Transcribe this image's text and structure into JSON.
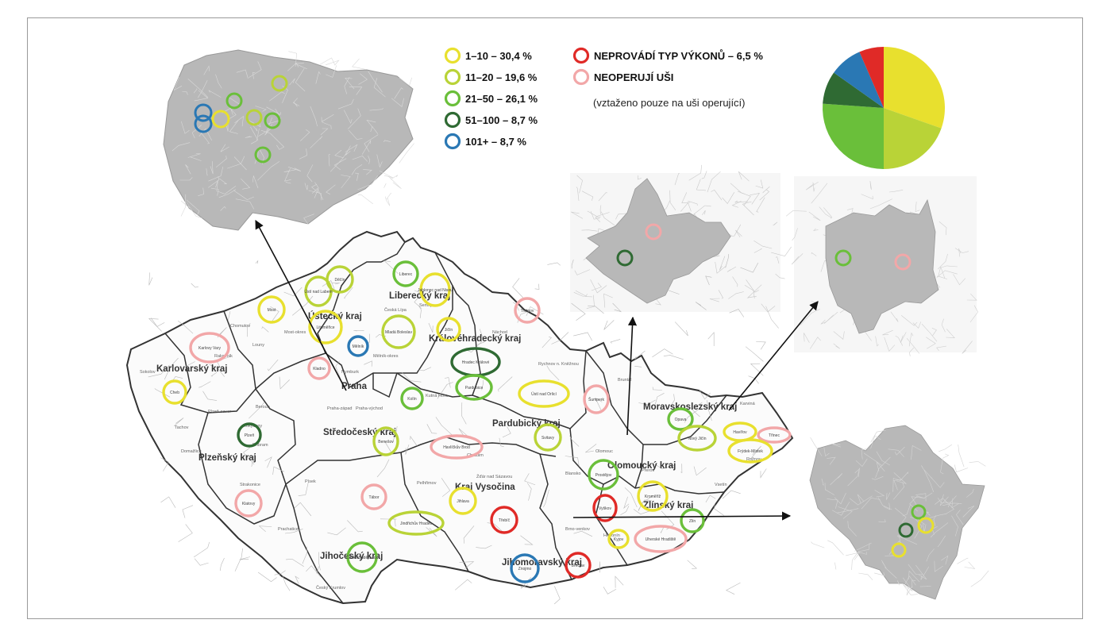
{
  "colors": {
    "c1_10": "#e8e02e",
    "c11_20": "#b9d337",
    "c21_50": "#6abf3a",
    "c51_100": "#2f6a33",
    "c101": "#2a78b4",
    "red": "#e02a27",
    "pink": "#f2a7a8",
    "map_fill": "#b8b8b8",
    "map_light": "#f4f4f4",
    "line": "#555555"
  },
  "legend": {
    "items": [
      {
        "text": "1–10 – 30,4 %",
        "color_key": "c1_10"
      },
      {
        "text": "11–20 – 19,6 %",
        "color_key": "c11_20"
      },
      {
        "text": "21–50 – 26,1 %",
        "color_key": "c21_50"
      },
      {
        "text": "51–100 – 8,7 %",
        "color_key": "c51_100"
      },
      {
        "text": "101+ – 8,7 %",
        "color_key": "c101"
      },
      {
        "text": "NEPROVÁDÍ TYP VÝKONŮ – 6,5 %",
        "color_key": "red"
      },
      {
        "text": "NEOPERUJÍ UŠI",
        "color_key": "pink"
      }
    ],
    "note": "(vztaženo pouze na uši operující)"
  },
  "pie": {
    "slices": [
      {
        "value": 30.4,
        "color_key": "c1_10"
      },
      {
        "value": 19.6,
        "color_key": "c11_20"
      },
      {
        "value": 26.1,
        "color_key": "c21_50"
      },
      {
        "value": 8.7,
        "color_key": "c51_100"
      },
      {
        "value": 8.7,
        "color_key": "c101"
      },
      {
        "value": 6.5,
        "color_key": "red"
      }
    ]
  },
  "regions": [
    {
      "id": "liberecky",
      "label": "Liberecký kraj"
    },
    {
      "id": "ustecky",
      "label": "Ústecký kraj"
    },
    {
      "id": "karlovarsky",
      "label": "Karlovarský kraj"
    },
    {
      "id": "kralovehradecky",
      "label": "Královéhradecký kraj"
    },
    {
      "id": "praha",
      "label": "Praha"
    },
    {
      "id": "stredocesky",
      "label": "Středočeský kraj"
    },
    {
      "id": "pardubicky",
      "label": "Pardubický kraj"
    },
    {
      "id": "plzensky",
      "label": "Plzeňský kraj"
    },
    {
      "id": "moravskoslezsky",
      "label": "Moravskoslezský kraj"
    },
    {
      "id": "olomoucky",
      "label": "Olomoucký kraj"
    },
    {
      "id": "vysocina",
      "label": "Kraj Vysočina"
    },
    {
      "id": "zlinsky",
      "label": "Zlínský kraj"
    },
    {
      "id": "jihocesky",
      "label": "Jihočeský kraj"
    },
    {
      "id": "jihomoravsky",
      "label": "Jihomoravský kraj"
    }
  ],
  "markers": [
    {
      "label": "Děčín",
      "color_key": "c11_20"
    },
    {
      "label": "Ústí nad Labem",
      "color_key": "c11_20"
    },
    {
      "label": "Most",
      "color_key": "c1_10"
    },
    {
      "label": "Liberec",
      "color_key": "c21_50"
    },
    {
      "label": "Jablonec nad Nisou",
      "color_key": "c1_10"
    },
    {
      "label": "Trutnov",
      "color_key": "pink"
    },
    {
      "label": "Litoměřice",
      "color_key": "c1_10"
    },
    {
      "label": "Mladá Boleslav",
      "color_key": "c11_20"
    },
    {
      "label": "Jičín",
      "color_key": "c1_10"
    },
    {
      "label": "Karlovy Vary",
      "color_key": "pink"
    },
    {
      "label": "Mělník",
      "color_key": "c101"
    },
    {
      "label": "Kladno",
      "color_key": "pink"
    },
    {
      "label": "Hradec Králové",
      "color_key": "c51_100"
    },
    {
      "label": "Pardubice",
      "color_key": "c21_50"
    },
    {
      "label": "Cheb",
      "color_key": "c1_10"
    },
    {
      "label": "Kolín",
      "color_key": "c21_50"
    },
    {
      "label": "Ústí nad Orlicí",
      "color_key": "c1_10"
    },
    {
      "label": "Šumperk",
      "color_key": "pink"
    },
    {
      "label": "Plzeň",
      "color_key": "c51_100"
    },
    {
      "label": "Benešov",
      "color_key": "c11_20"
    },
    {
      "label": "Havlíčkův Brod",
      "color_key": "pink"
    },
    {
      "label": "Svitavy",
      "color_key": "c11_20"
    },
    {
      "label": "Opava",
      "color_key": "c21_50"
    },
    {
      "label": "Nový Jičín",
      "color_key": "c11_20"
    },
    {
      "label": "Havířov",
      "color_key": "c1_10"
    },
    {
      "label": "Třinec",
      "color_key": "pink"
    },
    {
      "label": "Frýdek-Místek",
      "color_key": "c1_10"
    },
    {
      "label": "Prostějov",
      "color_key": "c21_50"
    },
    {
      "label": "Klatovy",
      "color_key": "pink"
    },
    {
      "label": "Tábor",
      "color_key": "pink"
    },
    {
      "label": "Jihlava",
      "color_key": "c1_10"
    },
    {
      "label": "Kroměříž",
      "color_key": "c1_10"
    },
    {
      "label": "Třebíč",
      "color_key": "red"
    },
    {
      "label": "Vyškov",
      "color_key": "red"
    },
    {
      "label": "Zlín",
      "color_key": "c21_50"
    },
    {
      "label": "Jindřichův Hradec",
      "color_key": "c11_20"
    },
    {
      "label": "Kyjov",
      "color_key": "c1_10"
    },
    {
      "label": "Uherské Hradiště",
      "color_key": "pink"
    },
    {
      "label": "České Budějovice",
      "color_key": "c21_50"
    },
    {
      "label": "Znojmo",
      "color_key": "c101"
    },
    {
      "label": "Břeclav",
      "color_key": "red"
    }
  ],
  "district_labels": [
    "Chomutov",
    "Louny",
    "Česká Lípa",
    "Semily",
    "Sokolov",
    "Rakovník",
    "Beroun",
    "Tachov",
    "Plzeň-sever",
    "Rokycany",
    "Domažlice",
    "Příbram",
    "Písek",
    "Strakonice",
    "Prachatice",
    "Český Krumlov",
    "Pelhřimov",
    "Žďár nad Sázavou",
    "Chrudim",
    "Náchod",
    "Rychnov n. Kněžnou",
    "Bruntál",
    "Olomouc",
    "Přerov",
    "Vsetín",
    "Blansko",
    "Brno-venkov",
    "Hodonín",
    "Nymburk",
    "Kutná Hora",
    "Praha-západ",
    "Praha-východ",
    "Karviná",
    "Rožnov",
    "Most-okres",
    "Mělník-okres"
  ]
}
